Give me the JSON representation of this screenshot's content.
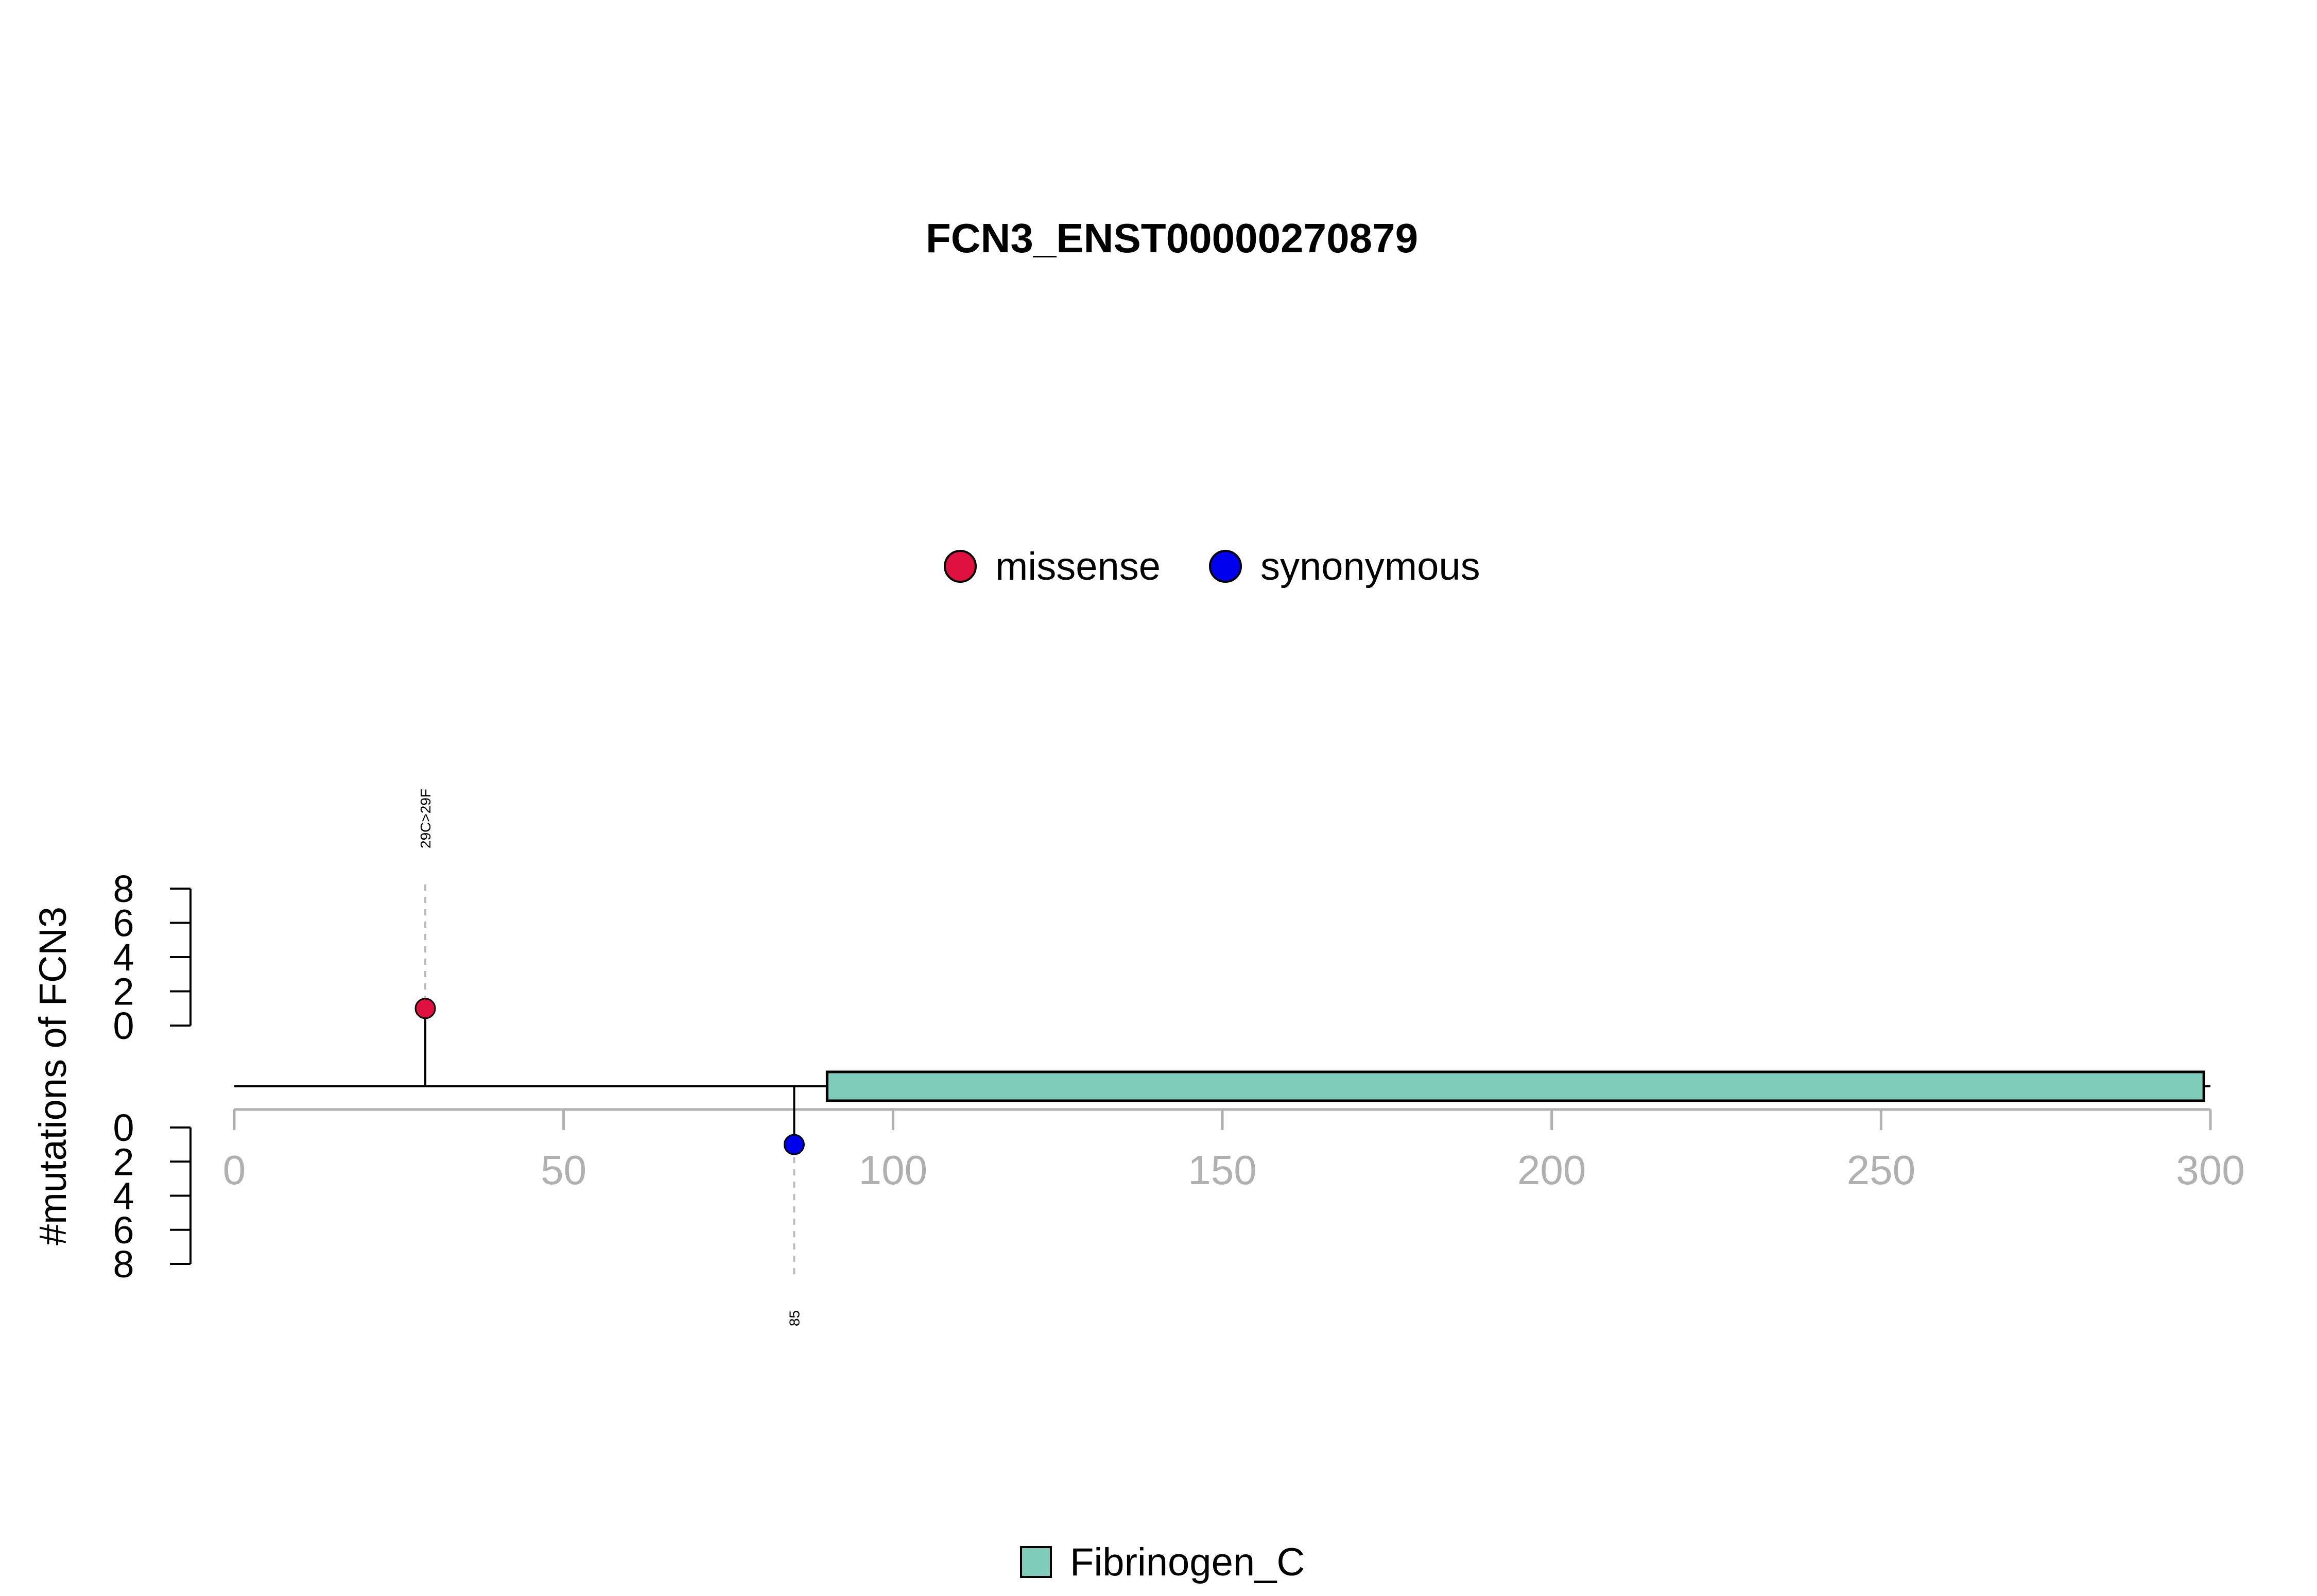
{
  "chart_data": {
    "type": "lollipop",
    "title": "FCN3_ENST00000270879",
    "ylabel": "#mutations of FCN3",
    "x_axis": {
      "min": 0,
      "max": 300,
      "ticks": [
        0,
        50,
        100,
        150,
        200,
        250,
        300
      ],
      "tick_labels": [
        "0",
        "50",
        "100",
        "150",
        "200",
        "250",
        "300"
      ]
    },
    "y_axis_upper": {
      "min": 0,
      "max": 8,
      "ticks": [
        0,
        2,
        4,
        6,
        8
      ],
      "tick_labels": [
        "0",
        "2",
        "4",
        "6",
        "8"
      ]
    },
    "y_axis_lower": {
      "min": 0,
      "max": 8,
      "ticks": [
        0,
        2,
        4,
        6,
        8
      ],
      "tick_labels": [
        "0",
        "2",
        "4",
        "6",
        "8"
      ]
    },
    "protein_length": 300,
    "legend": {
      "placement": "top-center",
      "entries": [
        {
          "name": "missense",
          "color": "#E0103F"
        },
        {
          "name": "synonymous",
          "color": "#0000EE"
        }
      ]
    },
    "domain_legend": {
      "placement": "bottom-center",
      "entries": [
        {
          "name": "Fibrinogen_C",
          "color": "#7ECDBB"
        }
      ]
    },
    "domains": [
      {
        "name": "Fibrinogen_C",
        "start": 90,
        "end": 299,
        "color": "#7ECDBB"
      }
    ],
    "mutations": [
      {
        "position": 29,
        "count": 1,
        "type": "missense",
        "side": "upper",
        "label": "29C>29F",
        "color": "#E0103F"
      },
      {
        "position": 85,
        "count": 1,
        "type": "synonymous",
        "side": "lower",
        "label": "85",
        "color": "#0000EE"
      }
    ]
  }
}
